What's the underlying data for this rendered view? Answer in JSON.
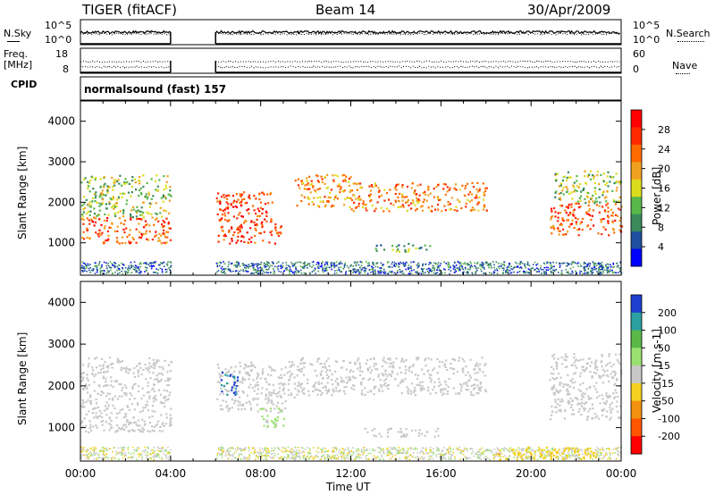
{
  "header": {
    "station": "TIGER (fitACF)",
    "beam": "Beam 14",
    "date": "30/Apr/2009"
  },
  "side_panels": {
    "nsky_label": "N.Sky",
    "nsky_ticks": [
      "10^5",
      "10^0"
    ],
    "nsearch_label": "N.Search",
    "nsearch_ticks": [
      "10^5",
      "10^0"
    ],
    "freq_label": "Freq.",
    "freq_unit": "[MHz]",
    "freq_ticks": [
      "18",
      "8"
    ],
    "nave_label": "Nave",
    "nave_ticks": [
      "60",
      "0"
    ],
    "cpid_label": "CPID",
    "cpid_text": "normalsound (fast) 157"
  },
  "colors": {
    "power_scale": [
      "#0000ff",
      "#1f4fa0",
      "#3a8a5a",
      "#58b84a",
      "#dcdc1e",
      "#f0a020",
      "#ff6a00",
      "#ff2a00",
      "#ff0000"
    ],
    "velocity_scale": [
      "#1e3fd0",
      "#2aa0a0",
      "#5ab848",
      "#9ae070",
      "#c8c8c8",
      "#f5d020",
      "#f39010",
      "#ff5500",
      "#ff0000"
    ]
  },
  "chart_data": [
    {
      "type": "heatmap",
      "name": "power-panel",
      "ylabel": "Slant Range [km]",
      "yticks": [
        "4000",
        "3000",
        "2000",
        "1000"
      ],
      "ylim": [
        200,
        4500
      ],
      "colorbar_label": "Power [dB]",
      "colorbar_ticks": [
        "28",
        "24",
        "20",
        "16",
        "12",
        "8",
        "4"
      ],
      "colorbar_range": [
        0,
        32
      ],
      "bands": [
        {
          "t0": 0.0,
          "t1": 4.0,
          "r0": 1000,
          "r1": 1650,
          "value": 24
        },
        {
          "t0": 0.0,
          "t1": 4.0,
          "r0": 1650,
          "r1": 2700,
          "value": 14
        },
        {
          "t0": 6.0,
          "t1": 8.5,
          "r0": 1000,
          "r1": 2300,
          "value": 26
        },
        {
          "t0": 8.5,
          "t1": 9.0,
          "r0": 1000,
          "r1": 1500,
          "value": 24
        },
        {
          "t0": 9.5,
          "t1": 12.0,
          "r0": 1900,
          "r1": 2700,
          "value": 20
        },
        {
          "t0": 12.0,
          "t1": 18.0,
          "r0": 1800,
          "r1": 2500,
          "value": 22
        },
        {
          "t0": 13.0,
          "t1": 15.5,
          "r0": 800,
          "r1": 1000,
          "value": 12
        },
        {
          "t0": 20.8,
          "t1": 24.0,
          "r0": 1200,
          "r1": 2000,
          "value": 24
        },
        {
          "t0": 21.0,
          "t1": 24.0,
          "r0": 2000,
          "r1": 2800,
          "value": 14
        }
      ]
    },
    {
      "type": "heatmap",
      "name": "velocity-panel",
      "ylabel": "Slant Range [km]",
      "yticks": [
        "4000",
        "3000",
        "2000",
        "1000"
      ],
      "ylim": [
        200,
        4500
      ],
      "colorbar_label": "Velocity [m s-1]",
      "colorbar_ticks": [
        "200",
        "100",
        "50",
        "15",
        "-15",
        "-50",
        "-100",
        "-200"
      ],
      "colorbar_range": [
        -250,
        250
      ],
      "bands": [
        {
          "t0": 0.0,
          "t1": 4.0,
          "r0": 900,
          "r1": 2700,
          "value": 0
        },
        {
          "t0": 6.0,
          "t1": 9.5,
          "r0": 1400,
          "r1": 2600,
          "value": 0
        },
        {
          "t0": 6.2,
          "t1": 7.0,
          "r0": 1800,
          "r1": 2400,
          "value": 200
        },
        {
          "t0": 7.8,
          "t1": 9.0,
          "r0": 1000,
          "r1": 1500,
          "value": 40
        },
        {
          "t0": 9.5,
          "t1": 18.0,
          "r0": 1800,
          "r1": 2700,
          "value": 0
        },
        {
          "t0": 12.5,
          "t1": 16.0,
          "r0": 800,
          "r1": 1000,
          "value": 0
        },
        {
          "t0": 20.8,
          "t1": 24.0,
          "r0": 1200,
          "r1": 2800,
          "value": 0
        },
        {
          "t0": 18.5,
          "t1": 23.0,
          "r0": 250,
          "r1": 550,
          "value": -60
        }
      ]
    }
  ],
  "xaxis": {
    "label": "Time UT",
    "ticks": [
      "00:00",
      "04:00",
      "08:00",
      "12:00",
      "16:00",
      "20:00",
      "00:00"
    ],
    "range_hours": [
      0,
      24
    ],
    "data_gap_hours": [
      4.0,
      6.0
    ]
  }
}
